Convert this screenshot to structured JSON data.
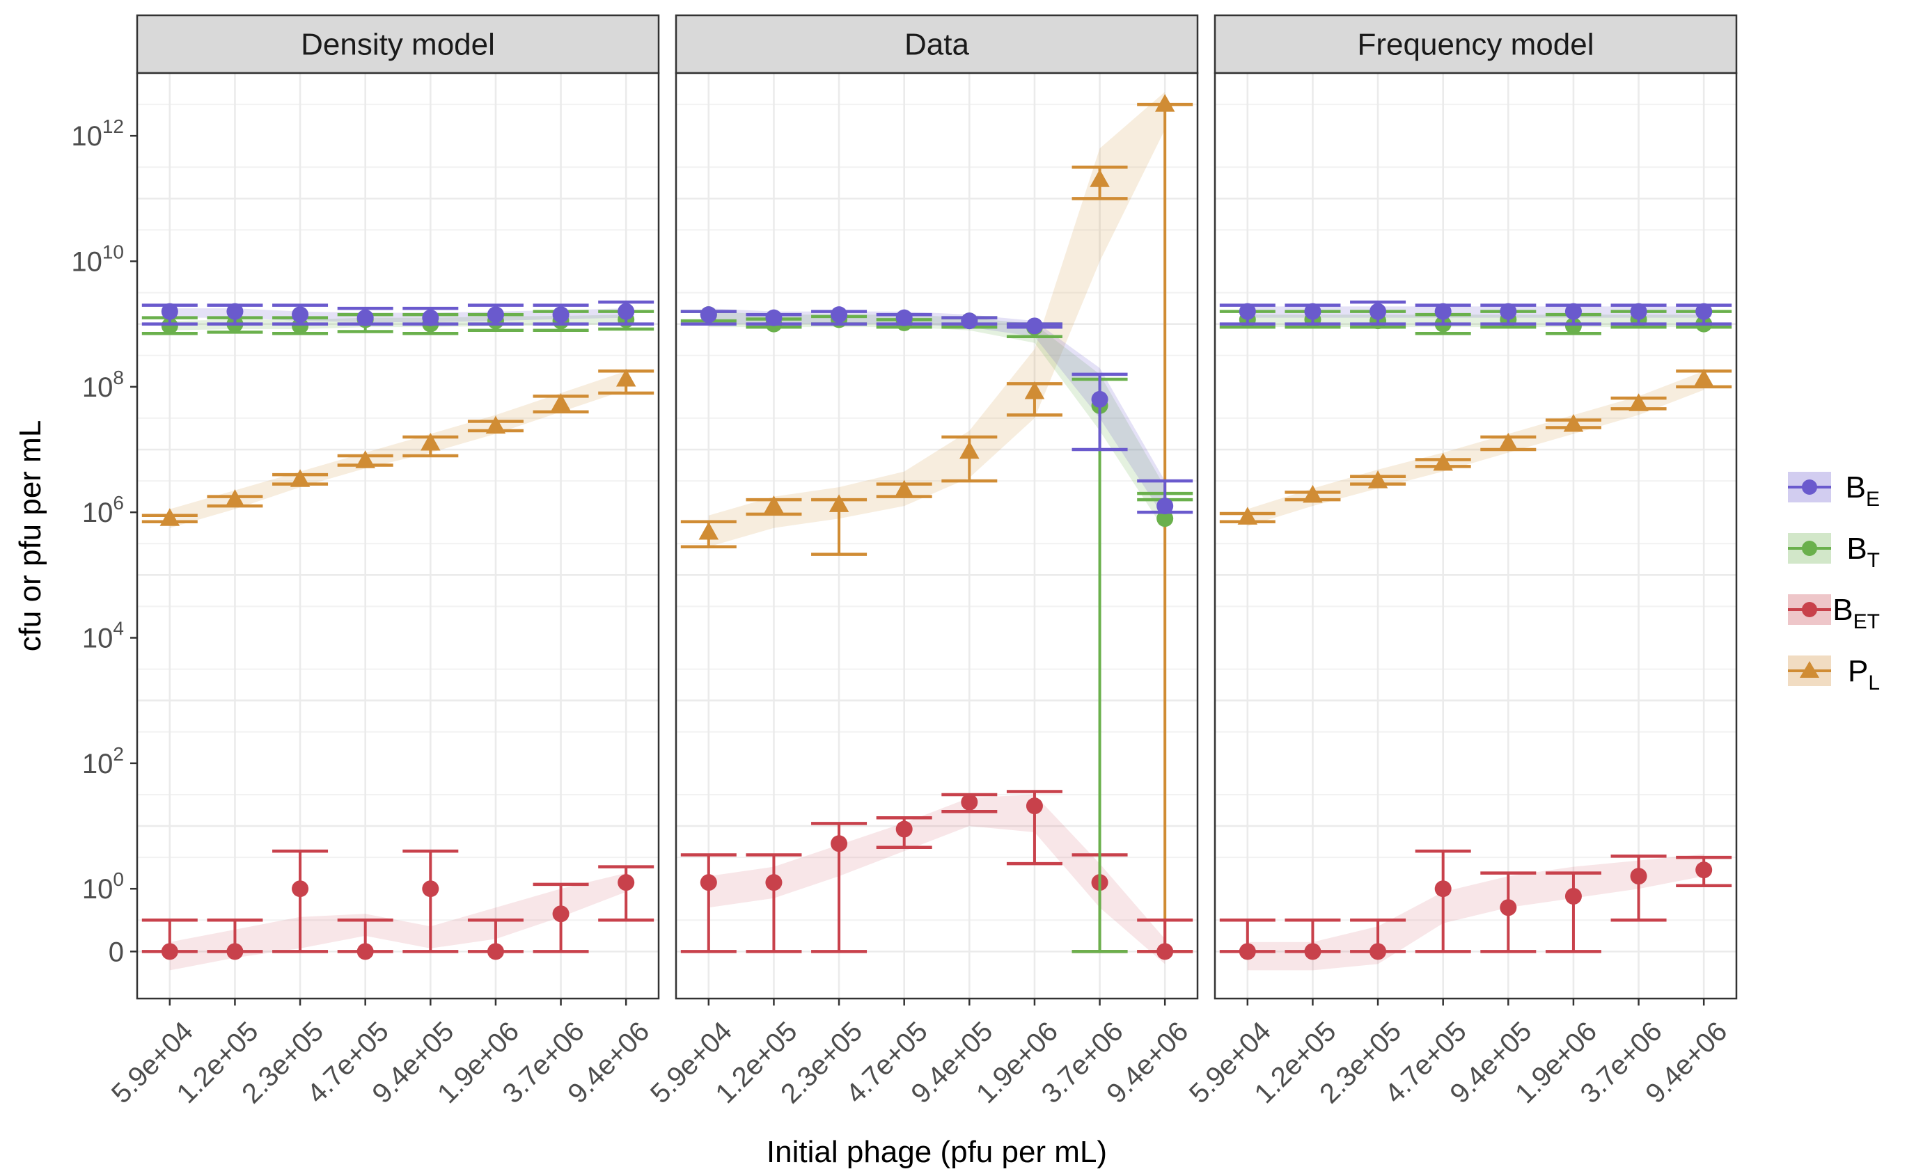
{
  "colors": {
    "BE": "#6a5acd",
    "BT": "#6ab04c",
    "BET": "#c8414b",
    "PL": "#d08c34",
    "strip_fill": "#d9d9d9",
    "grid": "#ebebeb",
    "panel_border": "#333333",
    "axis_text": "#4d4d4d"
  },
  "chart_data": {
    "type": "scatter",
    "xlabel": "Initial phage (pfu per mL)",
    "ylabel": "cfu or pfu per mL",
    "y_scale": "log10 (pseudo-log, 0 shown)",
    "y_ticks": [
      "0",
      "10^0",
      "10^2",
      "10^4",
      "10^6",
      "10^8",
      "10^10",
      "10^12"
    ],
    "categories": [
      "5.9e+04",
      "1.2e+05",
      "2.3e+05",
      "4.7e+05",
      "9.4e+05",
      "1.9e+06",
      "3.7e+06",
      "9.4e+06"
    ],
    "grid": true,
    "legend_position": "right",
    "legend": [
      {
        "key": "BE",
        "base": "B",
        "sub": "E",
        "shape": "circle"
      },
      {
        "key": "BT",
        "base": "B",
        "sub": "T",
        "shape": "circle"
      },
      {
        "key": "BET",
        "base": "B",
        "sub": "ET",
        "shape": "circle"
      },
      {
        "key": "PL",
        "base": "P",
        "sub": "L",
        "shape": "triangle"
      }
    ],
    "panels": [
      {
        "title": "Density model",
        "series": {
          "BE": {
            "values": [
              9.2,
              9.2,
              9.15,
              9.1,
              9.1,
              9.15,
              9.15,
              9.2
            ],
            "lo": [
              9.0,
              9.0,
              9.0,
              9.0,
              9.0,
              9.0,
              9.0,
              9.0
            ],
            "hi": [
              9.3,
              9.3,
              9.3,
              9.25,
              9.25,
              9.3,
              9.3,
              9.35
            ]
          },
          "BT": {
            "values": [
              8.97,
              9.0,
              8.97,
              9.07,
              9.0,
              9.05,
              9.05,
              9.07
            ],
            "lo": [
              8.85,
              8.87,
              8.85,
              8.88,
              8.85,
              8.9,
              8.9,
              8.92
            ],
            "hi": [
              9.1,
              9.1,
              9.1,
              9.15,
              9.15,
              9.15,
              9.2,
              9.2
            ]
          },
          "BET": {
            "values": [
              -1.0,
              -1.0,
              -0.0,
              -1.0,
              -0.0,
              -1.0,
              -0.4,
              0.1
            ],
            "lo": [
              -1.0,
              -1.0,
              -1.0,
              -1.0,
              -1.0,
              -1.0,
              -1.0,
              -0.5
            ],
            "hi": [
              -0.5,
              -0.5,
              0.6,
              -0.5,
              0.6,
              -0.5,
              0.07,
              0.35
            ]
          },
          "PL": {
            "values": [
              5.9,
              6.2,
              6.52,
              6.82,
              7.1,
              7.37,
              7.73,
              8.12
            ],
            "lo": [
              5.85,
              6.1,
              6.45,
              6.75,
              6.9,
              7.3,
              7.6,
              7.9
            ],
            "hi": [
              5.95,
              6.25,
              6.6,
              6.9,
              7.2,
              7.45,
              7.85,
              8.25
            ]
          }
        },
        "bands": {
          "BE": {
            "lo": [
              9.1,
              9.1,
              9.05,
              9.03,
              9.03,
              9.05,
              9.08,
              9.1
            ],
            "hi": [
              9.25,
              9.25,
              9.2,
              9.18,
              9.18,
              9.2,
              9.22,
              9.25
            ]
          },
          "BT": {
            "lo": [
              8.9,
              8.92,
              8.92,
              8.95,
              8.95,
              8.97,
              8.98,
              9.0
            ],
            "hi": [
              9.05,
              9.07,
              9.07,
              9.1,
              9.1,
              9.12,
              9.13,
              9.15
            ]
          },
          "BET": {
            "lo": [
              -1.3,
              -1.1,
              -0.95,
              -0.75,
              -0.95,
              -0.8,
              -0.45,
              -0.05
            ],
            "hi": [
              -0.85,
              -0.65,
              -0.45,
              -0.4,
              -0.6,
              -0.3,
              0.0,
              0.25
            ]
          },
          "PL": {
            "lo": [
              5.75,
              6.05,
              6.4,
              6.7,
              6.95,
              7.25,
              7.6,
              7.95
            ],
            "hi": [
              6.05,
              6.35,
              6.65,
              6.95,
              7.25,
              7.55,
              7.9,
              8.25
            ]
          }
        }
      },
      {
        "title": "Data",
        "series": {
          "BE": {
            "values": [
              9.15,
              9.1,
              9.15,
              9.1,
              9.05,
              8.97,
              7.8,
              6.1
            ],
            "lo": [
              9.0,
              9.0,
              9.0,
              9.0,
              9.0,
              8.95,
              7.0,
              6.0
            ],
            "hi": [
              9.2,
              9.15,
              9.2,
              9.15,
              9.1,
              9.0,
              8.2,
              6.5
            ]
          },
          "BT": {
            "values": [
              9.15,
              9.0,
              9.07,
              9.02,
              9.05,
              8.95,
              7.7,
              5.9
            ],
            "lo": [
              9.05,
              8.95,
              9.0,
              8.95,
              8.95,
              8.8,
              -1.0,
              6.2
            ],
            "hi": [
              9.2,
              9.08,
              9.12,
              9.07,
              9.1,
              9.0,
              8.12,
              6.3
            ]
          },
          "BET": {
            "values": [
              0.1,
              0.1,
              0.72,
              0.95,
              1.38,
              1.32,
              0.1,
              -1.0
            ],
            "lo": [
              -1.0,
              -1.0,
              -1.0,
              0.66,
              1.23,
              0.4,
              -1.0,
              -1.0
            ],
            "hi": [
              0.54,
              0.54,
              1.04,
              1.13,
              1.5,
              1.55,
              0.54,
              -0.5
            ]
          },
          "PL": {
            "values": [
              5.68,
              6.1,
              6.12,
              6.35,
              6.97,
              7.92,
              11.3,
              12.5
            ],
            "lo": [
              5.45,
              5.97,
              5.33,
              6.25,
              6.5,
              7.55,
              11.0,
              -1.0
            ],
            "hi": [
              5.85,
              6.2,
              6.2,
              6.45,
              7.2,
              8.05,
              11.5,
              12.5
            ]
          }
        },
        "bands": {
          "BE": {
            "lo": [
              9.0,
              9.0,
              9.0,
              9.0,
              8.95,
              8.8,
              7.5,
              5.9
            ],
            "hi": [
              9.25,
              9.2,
              9.2,
              9.2,
              9.15,
              9.05,
              8.3,
              6.5
            ]
          },
          "BT": {
            "lo": [
              8.95,
              8.95,
              8.95,
              8.95,
              8.9,
              8.7,
              7.3,
              5.7
            ],
            "hi": [
              9.2,
              9.15,
              9.15,
              9.15,
              9.1,
              9.0,
              8.2,
              6.4
            ]
          },
          "BET": {
            "lo": [
              -0.3,
              -0.15,
              0.2,
              0.6,
              1.0,
              0.9,
              -0.3,
              -1.2
            ],
            "hi": [
              0.2,
              0.35,
              0.7,
              1.05,
              1.45,
              1.5,
              0.4,
              -0.8
            ]
          },
          "PL": {
            "lo": [
              5.45,
              5.75,
              5.9,
              6.1,
              6.55,
              7.5,
              10.0,
              12.1
            ],
            "hi": [
              5.95,
              6.25,
              6.4,
              6.65,
              7.3,
              8.6,
              11.8,
              12.7
            ]
          }
        }
      },
      {
        "title": "Frequency model",
        "series": {
          "BE": {
            "values": [
              9.2,
              9.2,
              9.2,
              9.2,
              9.2,
              9.2,
              9.2,
              9.2
            ],
            "lo": [
              9.0,
              9.0,
              9.0,
              9.0,
              9.0,
              9.0,
              9.0,
              9.0
            ],
            "hi": [
              9.3,
              9.3,
              9.35,
              9.3,
              9.3,
              9.3,
              9.3,
              9.3
            ]
          },
          "BT": {
            "values": [
              9.07,
              9.07,
              9.05,
              9.0,
              9.07,
              8.97,
              9.07,
              9.0
            ],
            "lo": [
              8.95,
              8.95,
              8.95,
              8.85,
              8.95,
              8.85,
              8.95,
              8.95
            ],
            "hi": [
              9.2,
              9.2,
              9.2,
              9.15,
              9.2,
              9.15,
              9.2,
              9.2
            ]
          },
          "BET": {
            "values": [
              -1.0,
              -1.0,
              -1.0,
              -0.0,
              -0.3,
              -0.12,
              0.2,
              0.3
            ],
            "lo": [
              -1.0,
              -1.0,
              -1.0,
              -1.0,
              -1.0,
              -1.0,
              -0.5,
              0.05
            ],
            "hi": [
              -0.5,
              -0.5,
              -0.5,
              0.6,
              0.25,
              0.25,
              0.52,
              0.5
            ]
          },
          "PL": {
            "values": [
              5.92,
              6.27,
              6.5,
              6.78,
              7.1,
              7.4,
              7.73,
              8.12
            ],
            "lo": [
              5.85,
              6.2,
              6.45,
              6.73,
              7.0,
              7.35,
              7.65,
              8.0
            ],
            "hi": [
              5.98,
              6.32,
              6.57,
              6.84,
              7.2,
              7.47,
              7.82,
              8.25
            ]
          }
        },
        "bands": {
          "BE": {
            "lo": [
              9.1,
              9.1,
              9.1,
              9.1,
              9.1,
              9.1,
              9.1,
              9.1
            ],
            "hi": [
              9.28,
              9.28,
              9.28,
              9.28,
              9.28,
              9.28,
              9.28,
              9.28
            ]
          },
          "BT": {
            "lo": [
              8.95,
              8.95,
              8.95,
              8.95,
              8.95,
              8.95,
              8.95,
              8.95
            ],
            "hi": [
              9.15,
              9.15,
              9.15,
              9.15,
              9.15,
              9.15,
              9.15,
              9.15
            ]
          },
          "BET": {
            "lo": [
              -1.3,
              -1.3,
              -1.2,
              -0.55,
              -0.3,
              -0.15,
              0.0,
              0.2
            ],
            "hi": [
              -0.85,
              -0.85,
              -0.6,
              -0.05,
              0.2,
              0.35,
              0.45,
              0.55
            ]
          },
          "PL": {
            "lo": [
              5.78,
              6.1,
              6.38,
              6.65,
              6.95,
              7.25,
              7.55,
              7.95
            ],
            "hi": [
              6.05,
              6.38,
              6.68,
              6.95,
              7.25,
              7.55,
              7.85,
              8.25
            ]
          }
        }
      }
    ]
  }
}
